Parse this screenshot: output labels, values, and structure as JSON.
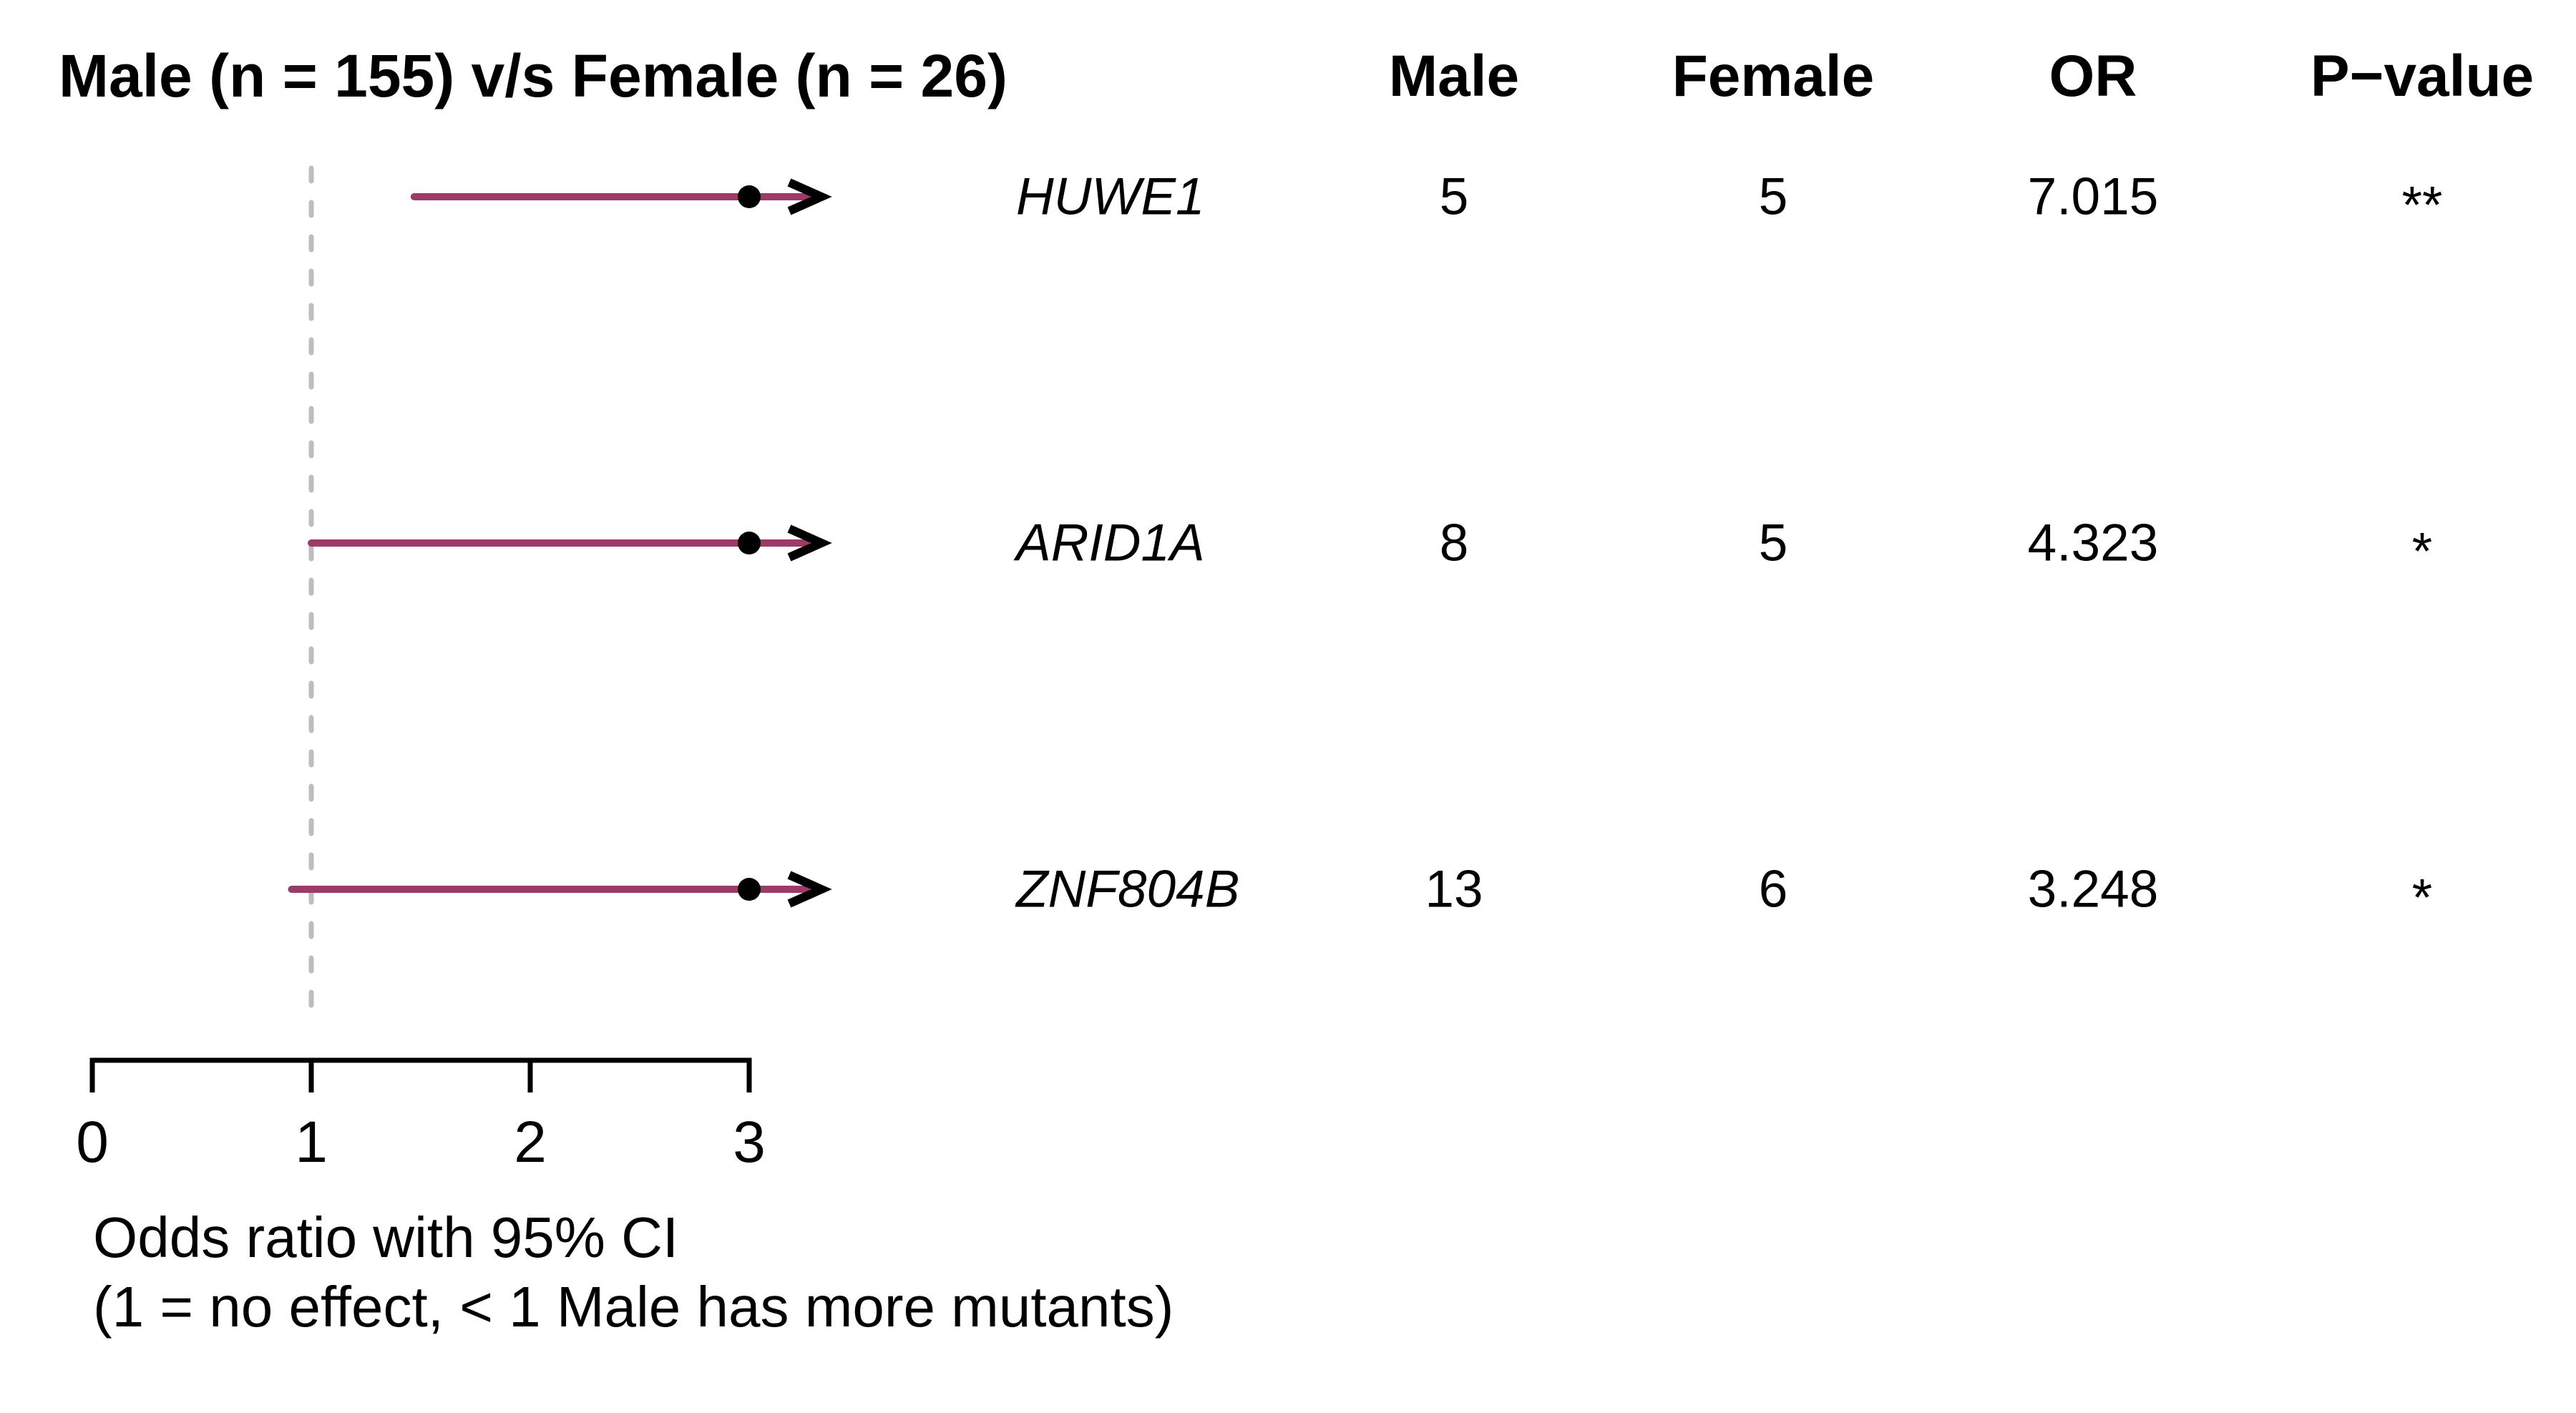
{
  "title": "Male (n = 155) v/s Female (n = 26)",
  "table": {
    "headers": {
      "male": "Male",
      "female": "Female",
      "or": "OR",
      "pvalue": "P−value"
    }
  },
  "caption": {
    "line1": "Odds ratio with 95% CI",
    "line2": "(1 = no effect, < 1 Male has more mutants)"
  },
  "colors": {
    "ci_line": "#9E3A68",
    "estimate_dot": "#000000",
    "clip_arrow": "#000000",
    "reference_line": "#BDBDBD",
    "axis": "#000000",
    "text": "#000000",
    "background": "#FFFFFF"
  },
  "chart_data": {
    "type": "forest",
    "title": "Male (n = 155) v/s Female (n = 26)",
    "xlabel_line1": "Odds ratio with 95% CI",
    "xlabel_line2": "(1 = no effect, < 1 Male has more mutants)",
    "xlim": [
      0,
      3
    ],
    "x_ticks": [
      0,
      1,
      2,
      3
    ],
    "reference_value": 1,
    "grid": false,
    "legend": "none",
    "column_headers": [
      "Male",
      "Female",
      "OR",
      "P−value"
    ],
    "rows": [
      {
        "gene": "HUWE1",
        "male": "5",
        "female": "5",
        "or": 7.015,
        "ci_lower": 1.47,
        "ci_upper": null,
        "ci_upper_clipped": true,
        "plotted_estimate": 3.0,
        "estimate_clipped": true,
        "pvalue": "**"
      },
      {
        "gene": "ARID1A",
        "male": "8",
        "female": "5",
        "or": 4.323,
        "ci_lower": 1.0,
        "ci_upper": null,
        "ci_upper_clipped": true,
        "plotted_estimate": 3.0,
        "estimate_clipped": true,
        "pvalue": "*"
      },
      {
        "gene": "ZNF804B",
        "male": "13",
        "female": "6",
        "or": 3.248,
        "ci_lower": 0.91,
        "ci_upper": null,
        "ci_upper_clipped": true,
        "plotted_estimate": 3.0,
        "estimate_clipped": true,
        "pvalue": "*"
      }
    ]
  }
}
